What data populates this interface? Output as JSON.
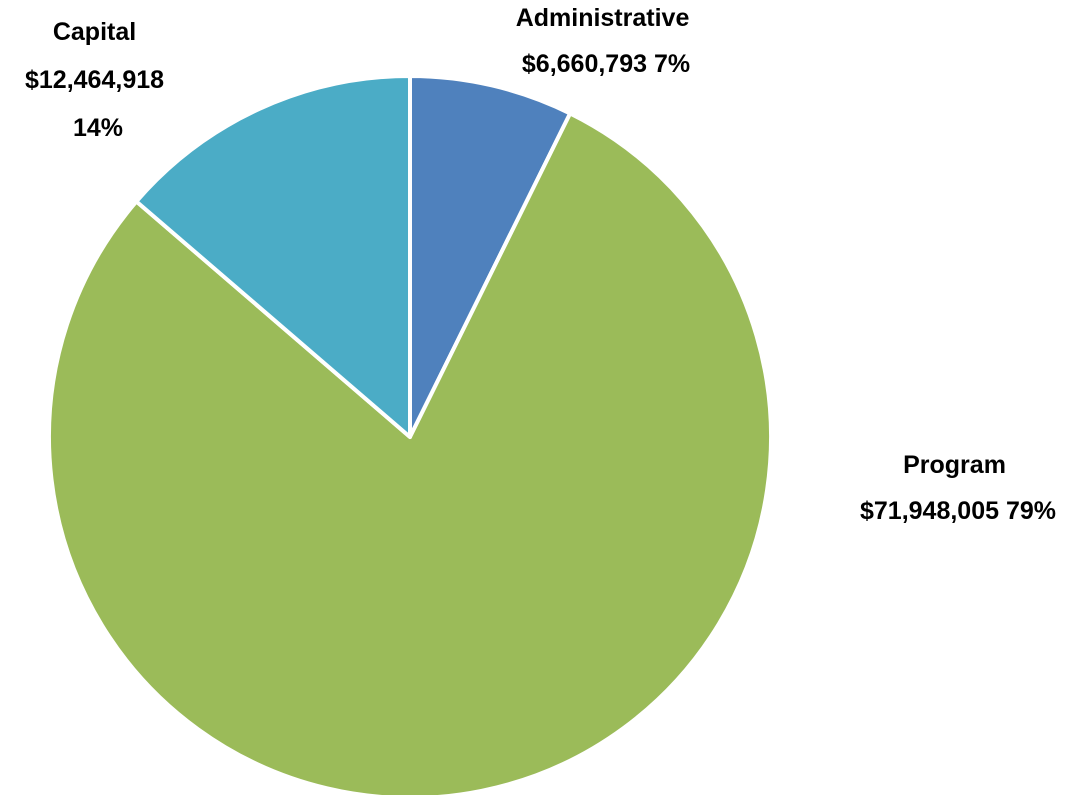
{
  "chart_data": {
    "type": "pie",
    "title": "",
    "start_angle_deg": 0,
    "direction": "clockwise",
    "slice_border_color": "#ffffff",
    "slices": [
      {
        "name": "Administrative",
        "value": 6660793,
        "value_label": "$6,660,793",
        "percent_label": "7%",
        "color": "#4f81bd"
      },
      {
        "name": "Program",
        "value": 71948005,
        "value_label": "$71,948,005",
        "percent_label": "79%",
        "color": "#9bbb59"
      },
      {
        "name": "Capital",
        "value": 12464918,
        "value_label": "$12,464,918",
        "percent_label": "14%",
        "color": "#4bacc6"
      }
    ]
  }
}
